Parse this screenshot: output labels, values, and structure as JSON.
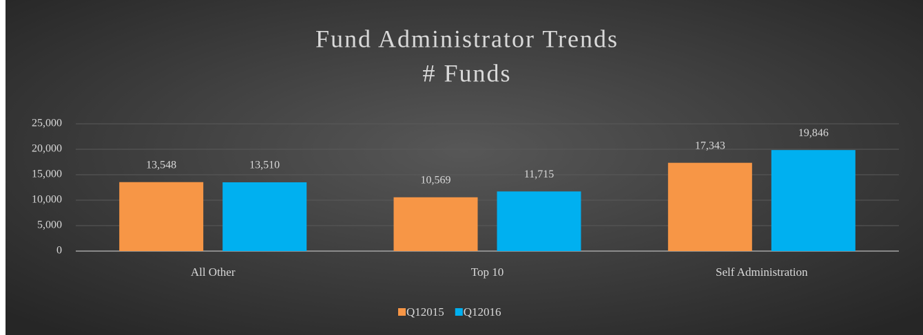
{
  "chart_data": {
    "type": "bar",
    "title": "Fund Administrator Trends",
    "subtitle": "# Funds",
    "categories": [
      "All Other",
      "Top 10",
      "Self Administration"
    ],
    "series": [
      {
        "name": "Q12015",
        "color": "#f79646",
        "values": [
          13548,
          10569,
          17343
        ],
        "value_labels": [
          "13,548",
          "10,569",
          "17,343"
        ]
      },
      {
        "name": "Q12016",
        "color": "#00b0f0",
        "values": [
          13510,
          11715,
          19846
        ],
        "value_labels": [
          "13,510",
          "11,715",
          "19,846"
        ]
      }
    ],
    "ylim": [
      0,
      25000
    ],
    "yticks": [
      0,
      {
        "value": 5000,
        "label": "5,000"
      },
      {
        "value": 10000,
        "label": "10,000"
      },
      {
        "value": 15000,
        "label": "15,000"
      },
      {
        "value": 20000,
        "label": "20,000"
      },
      {
        "value": 25000,
        "label": "25,000"
      }
    ],
    "grid": true,
    "legend": "bottom"
  }
}
